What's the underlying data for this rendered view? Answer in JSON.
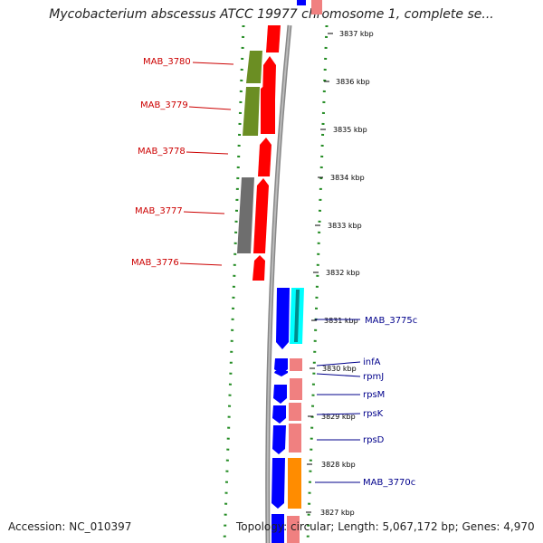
{
  "title": "Mycobacterium abscessus ATCC 19977 chromosome 1, complete se...",
  "footer": {
    "accession": "Accession: NC_010397",
    "topology": "Topology: circular; Length: 5,067,172 bp; Genes: 4,970"
  },
  "ticks": [
    "3837 kbp",
    "3836 kbp",
    "3835 kbp",
    "3834 kbp",
    "3833 kbp",
    "3832 kbp",
    "3831 kbp",
    "3830 kbp",
    "3829 kbp",
    "3828 kbp",
    "3827 kbp"
  ],
  "left_labels": [
    "MAB_3780",
    "MAB_3779",
    "MAB_3778",
    "MAB_3777",
    "MAB_3776"
  ],
  "right_labels": [
    "MAB_3775c",
    "infA",
    "rpmJ",
    "rpsM",
    "rpsK",
    "rpsD",
    "MAB_3770c"
  ],
  "colors": {
    "forward_cds": "#ff0000",
    "reverse_cds": "#0000ff",
    "cog_green": "#6b8e23",
    "cog_gray": "#6e6e6e",
    "pink": "#f08080",
    "cyan": "#00ffff",
    "orange": "#ff8c00",
    "label_left": "#cc0000",
    "label_right": "#00008b",
    "dots": "#228b22"
  }
}
